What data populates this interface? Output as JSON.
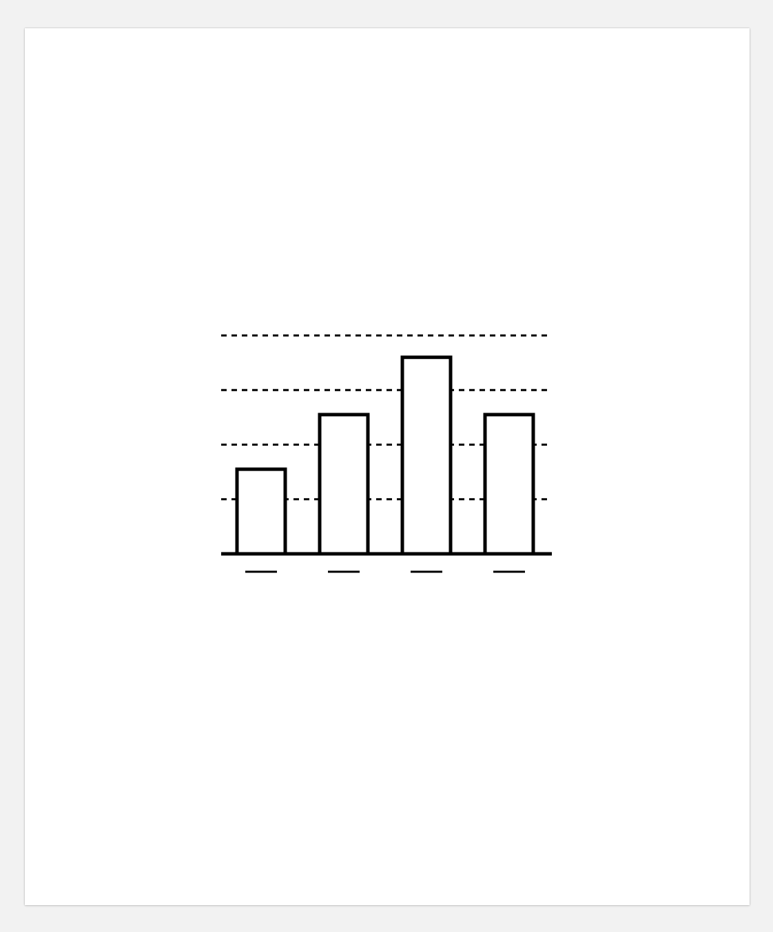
{
  "chart_data": {
    "type": "bar",
    "categories": [
      "",
      "",
      "",
      ""
    ],
    "values": [
      1.55,
      2.55,
      3.6,
      2.55
    ],
    "ylim": [
      0,
      4
    ],
    "grid": true,
    "grid_style": "dotted",
    "tick_labels_visible": false,
    "bar_fill": "#ffffff",
    "bar_stroke": "#000000"
  }
}
